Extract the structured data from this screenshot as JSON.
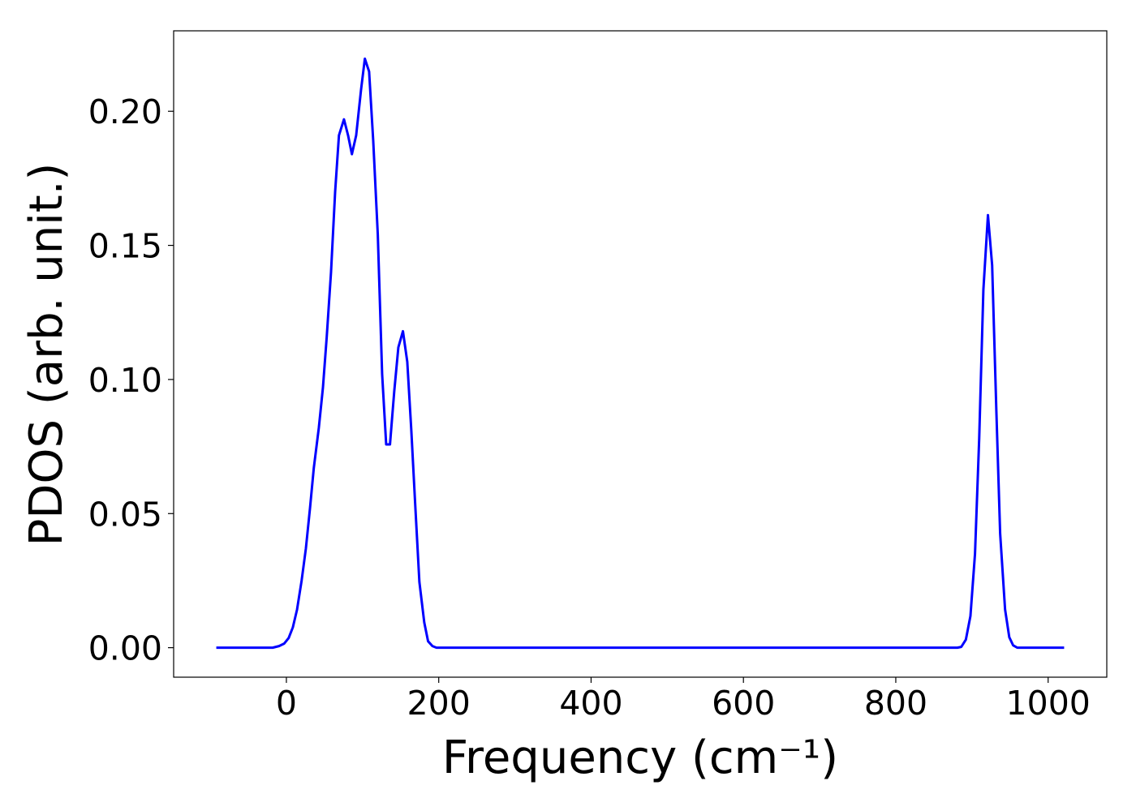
{
  "chart_data": {
    "type": "line",
    "xlabel": "Frequency (cm⁻¹)",
    "ylabel": "PDOS (arb. unit.)",
    "x": [
      -92,
      -18,
      -9.6,
      -3,
      3,
      8.5,
      14,
      20,
      25.6,
      31,
      36,
      42.6,
      48,
      53,
      58.6,
      64,
      69,
      75.6,
      81,
      86,
      91.6,
      98,
      103,
      108.6,
      114,
      120,
      125.7,
      131,
      136,
      141.6,
      147,
      153,
      158.7,
      164,
      169,
      174.6,
      181,
      186,
      191.7,
      197,
      881,
      886,
      892,
      898,
      904,
      909.5,
      915,
      921,
      926.5,
      932,
      937,
      943.5,
      949,
      954,
      959.5,
      1021
    ],
    "series": [
      {
        "name": "PDOS",
        "color": "#0000ff",
        "values": [
          0,
          0,
          0.0006,
          0.0015,
          0.0036,
          0.0076,
          0.0142,
          0.025,
          0.037,
          0.052,
          0.067,
          0.082,
          0.097,
          0.116,
          0.14,
          0.17,
          0.191,
          0.197,
          0.191,
          0.184,
          0.191,
          0.208,
          0.2196,
          0.2148,
          0.189,
          0.154,
          0.102,
          0.0758,
          0.0758,
          0.0956,
          0.112,
          0.118,
          0.1066,
          0.081,
          0.054,
          0.0245,
          0.0094,
          0.0024,
          0.0006,
          0,
          0,
          0.0003,
          0.003,
          0.0118,
          0.035,
          0.078,
          0.1335,
          0.1613,
          0.1426,
          0.0885,
          0.0426,
          0.0142,
          0.0039,
          0.0009,
          0,
          0
        ]
      }
    ],
    "xlim": [
      -148,
      1077
    ],
    "ylim": [
      -0.011,
      0.23
    ],
    "xticks": [
      0,
      200,
      400,
      600,
      800,
      1000
    ],
    "yticks": [
      {
        "value": 0,
        "label": "0.00"
      },
      {
        "value": 0.05,
        "label": "0.05"
      },
      {
        "value": 0.1,
        "label": "0.10"
      },
      {
        "value": 0.15,
        "label": "0.15"
      },
      {
        "value": 0.2,
        "label": "0.20"
      }
    ],
    "grid": false
  }
}
